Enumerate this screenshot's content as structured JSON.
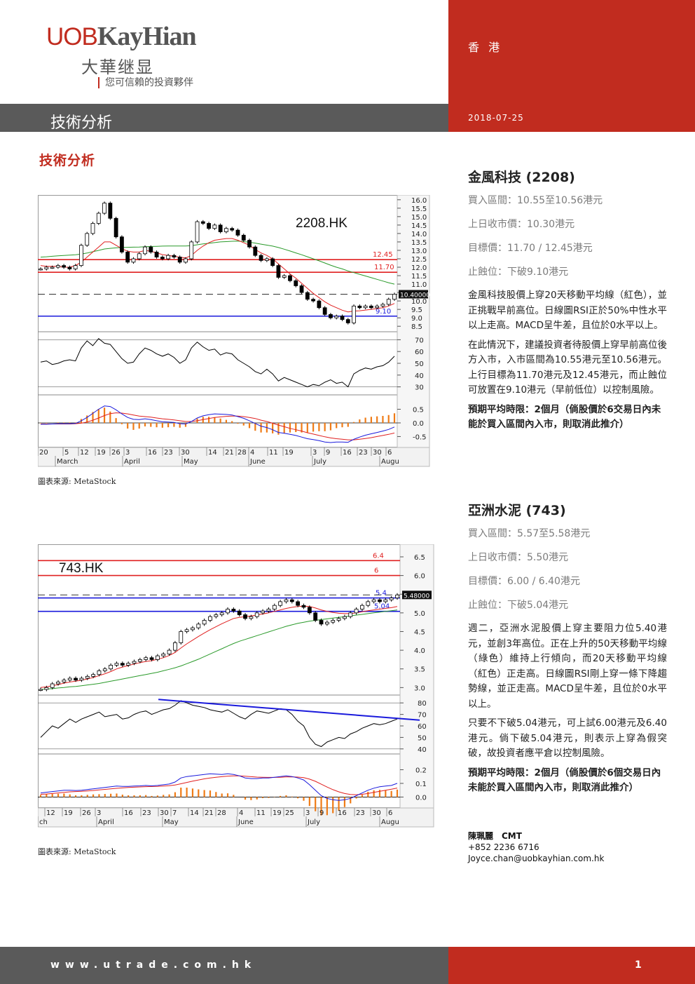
{
  "header": {
    "logo_en_a": "UOB",
    "logo_en_b": "KayHian",
    "logo_cn": "大華继显",
    "tagline": "您可信賴的投資夥伴",
    "city": "香 港",
    "section": "技術分析",
    "date": "2018-07-25"
  },
  "page_title": "技術分析",
  "stocks": [
    {
      "name": "金風科技 (2208)",
      "buy_range": "買入區間：10.55至10.56港元",
      "last_close": "上日收市價：10.30港元",
      "target": "目標價：11.70 / 12.45港元",
      "stop_loss": "止蝕位：下破9.10港元",
      "para1": "金風科技股價上穿20天移動平均線（紅色），並正挑戰早前高位。日線圖RSI正於50%中性水平以上走高。MACD呈牛差，且位於0水平以上。",
      "para2": "在此情況下，建議投資者待股價上穿早前高位後方入市，入市區間為10.55港元至10.56港元。上行目標為11.70港元及12.45港元，而止蝕位可放置在9.10港元（早前低位）以控制風險。",
      "holding": "預期平均時限：2個月（倘股價於6交易日內未能於買入區間內入市，則取消此推介）"
    },
    {
      "name": "亞洲水泥 (743)",
      "buy_range": "買入區間：5.57至5.58港元",
      "last_close": "上日收市價：5.50港元",
      "target": "目標價：6.00 / 6.40港元",
      "stop_loss": "止蝕位：下破5.04港元",
      "para1": "週二，亞洲水泥股價上穿主要阻力位5.40港元，並創3年高位。正在上升的50天移動平均線（綠色）維持上行傾向，而20天移動平均線（紅色）正走高。日線圖RSI剛上穿一條下降趨勢線，並正走高。MACD呈牛差，且位於0水平以上。",
      "para2": "只要不下破5.04港元，可上試6.00港元及6.40港元。倘下破5.04港元，則表示上穿為假突破，故投資者應平倉以控制風險。",
      "holding": "預期平均時限：2個月（倘股價於6個交易日內未能於買入區間內入市，則取消此推介）"
    }
  ],
  "analyst": {
    "name": "陳珮麗　CMT",
    "phone": "+852 2236 6716",
    "email": "Joyce.chan@uobkayhian.com.hk"
  },
  "chart_source": "圖表來源: MetaStock",
  "footer": {
    "url": "www.utrade.com.hk",
    "page": "1"
  },
  "colors": {
    "brand_red": "#c12c1f",
    "header_grey": "#5a5a5a",
    "ma20": "#e02020",
    "ma50": "#2a9a2a",
    "level_blue": "#1a1adc"
  },
  "chart_data": [
    {
      "type": "line",
      "title": "2208.HK",
      "price_axis": [
        "16.0",
        "15.5",
        "15.0",
        "14.5",
        "14.0",
        "13.5",
        "13.0",
        "12.5",
        "12.0",
        "11.5",
        "11.0",
        "10.5",
        "10.0",
        "9.5",
        "9.0",
        "8.5"
      ],
      "ylim": [
        8.3,
        16.2
      ],
      "levels": [
        {
          "label": "12.45",
          "value": 12.45,
          "color": "#e02020"
        },
        {
          "label": "11.70",
          "value": 11.7,
          "color": "#e02020"
        },
        {
          "label": "9.10",
          "value": 9.1,
          "color": "#1a1adc"
        }
      ],
      "last_price_label": "10.40000",
      "last_price": 10.4,
      "series": [
        {
          "values": [
            11.9,
            12.0,
            12.0,
            12.1,
            12.0,
            11.9,
            12.1,
            13.3,
            14.0,
            14.6,
            15.2,
            15.8,
            14.9,
            13.8,
            12.9,
            12.3,
            12.5,
            12.8,
            13.2,
            12.9,
            12.6,
            12.5,
            12.7,
            12.6,
            12.3,
            12.5,
            13.5,
            14.7,
            14.6,
            14.3,
            14.5,
            14.1,
            14.3,
            14.2,
            13.9,
            13.6,
            13.2,
            12.7,
            12.4,
            12.5,
            12.1,
            11.4,
            11.5,
            11.2,
            10.9,
            10.5,
            10.1,
            10.0,
            9.6,
            9.2,
            9.0,
            9.1,
            8.9,
            8.7,
            9.7,
            9.6,
            9.7,
            9.6,
            9.7,
            9.8,
            10.1,
            10.4
          ]
        },
        {
          "name": "",
          "values": [
            12.1,
            12.05,
            12.05,
            12.05,
            12.0,
            12.0,
            12.1,
            12.3,
            12.6,
            12.9,
            13.2,
            13.5,
            13.5,
            13.3,
            13.1,
            12.95,
            12.9,
            12.9,
            13.0,
            12.95,
            12.85,
            12.75,
            12.7,
            12.65,
            12.6,
            12.55,
            12.7,
            13.0,
            13.25,
            13.45,
            13.6,
            13.65,
            13.7,
            13.7,
            13.6,
            13.45,
            13.3,
            13.05,
            12.85,
            12.7,
            12.5,
            12.2,
            11.9,
            11.6,
            11.35,
            11.05,
            10.75,
            10.45,
            10.2,
            9.95,
            9.75,
            9.6,
            9.45,
            9.35,
            9.4,
            9.42,
            9.46,
            9.5,
            9.55,
            9.6,
            9.7,
            9.85
          ]
        },
        {
          "name": "",
          "values": [
            12.6,
            12.62,
            12.65,
            12.68,
            12.7,
            12.72,
            12.74,
            12.78,
            12.84,
            12.92,
            13.0,
            13.08,
            13.12,
            13.15,
            13.17,
            13.18,
            13.19,
            13.2,
            13.22,
            13.23,
            13.24,
            13.25,
            13.26,
            13.26,
            13.26,
            13.26,
            13.28,
            13.33,
            13.38,
            13.42,
            13.46,
            13.5,
            13.52,
            13.54,
            13.55,
            13.52,
            13.48,
            13.43,
            13.37,
            13.31,
            13.25,
            13.17,
            13.07,
            12.96,
            12.85,
            12.74,
            12.62,
            12.5,
            12.38,
            12.25,
            12.12,
            12.0,
            11.9,
            11.78,
            11.68,
            11.58,
            11.48,
            11.38,
            11.28,
            11.18,
            11.08,
            11.0
          ]
        }
      ],
      "rsi_axis": [
        "70",
        "60",
        "50",
        "40",
        "30"
      ],
      "rsi_values": [
        51,
        52,
        49,
        50,
        52,
        53,
        52,
        63,
        69,
        65,
        71,
        67,
        66,
        60,
        54,
        50,
        51,
        58,
        63,
        61,
        58,
        56,
        58,
        55,
        50,
        53,
        63,
        68,
        64,
        61,
        62,
        57,
        59,
        58,
        53,
        50,
        47,
        43,
        41,
        45,
        41,
        35,
        38,
        36,
        34,
        32,
        30,
        32,
        31,
        34,
        36,
        33,
        34,
        30,
        41,
        44,
        46,
        45,
        47,
        48,
        51,
        56
      ],
      "macd_axis": [
        "0.5",
        "0.0",
        "-0.5"
      ],
      "macd_ylim": [
        -0.9,
        0.95
      ],
      "macd_line": [
        -0.05,
        -0.05,
        -0.04,
        -0.03,
        -0.03,
        -0.03,
        -0.02,
        0.08,
        0.2,
        0.35,
        0.5,
        0.62,
        0.6,
        0.48,
        0.33,
        0.2,
        0.13,
        0.12,
        0.15,
        0.12,
        0.08,
        0.04,
        0.03,
        0.02,
        -0.03,
        -0.04,
        0.05,
        0.18,
        0.26,
        0.3,
        0.33,
        0.32,
        0.31,
        0.29,
        0.23,
        0.17,
        0.08,
        -0.02,
        -0.12,
        -0.17,
        -0.25,
        -0.35,
        -0.38,
        -0.42,
        -0.46,
        -0.52,
        -0.58,
        -0.61,
        -0.65,
        -0.7,
        -0.72,
        -0.7,
        -0.7,
        -0.71,
        -0.6,
        -0.52,
        -0.45,
        -0.4,
        -0.35,
        -0.3,
        -0.24,
        -0.15
      ],
      "macd_signal": [
        -0.04,
        -0.04,
        -0.04,
        -0.04,
        -0.04,
        -0.04,
        -0.03,
        -0.01,
        0.03,
        0.1,
        0.18,
        0.27,
        0.34,
        0.37,
        0.36,
        0.33,
        0.29,
        0.25,
        0.23,
        0.21,
        0.18,
        0.15,
        0.13,
        0.11,
        0.08,
        0.05,
        0.05,
        0.08,
        0.12,
        0.16,
        0.2,
        0.22,
        0.24,
        0.25,
        0.25,
        0.23,
        0.2,
        0.16,
        0.1,
        0.05,
        -0.01,
        -0.08,
        -0.14,
        -0.2,
        -0.25,
        -0.3,
        -0.36,
        -0.41,
        -0.46,
        -0.51,
        -0.55,
        -0.58,
        -0.6,
        -0.62,
        -0.62,
        -0.6,
        -0.57,
        -0.54,
        -0.5,
        -0.46,
        -0.42,
        -0.37
      ],
      "x_day_labels": [
        "20",
        "5",
        "12",
        "19",
        "26",
        "3",
        "16",
        "23",
        "30",
        "14",
        "21",
        "28",
        "4",
        "11",
        "19",
        "3",
        "9",
        "16",
        "23",
        "30",
        "6"
      ],
      "x_month_labels": [
        "March",
        "April",
        "May",
        "June",
        "July",
        "Augu"
      ]
    },
    {
      "type": "line",
      "title": "743.HK",
      "price_axis": [
        "6.5",
        "6.0",
        "5.5",
        "5.0",
        "4.5",
        "4.0",
        "3.5",
        "3.0"
      ],
      "ylim": [
        2.8,
        6.8
      ],
      "levels": [
        {
          "label": "6.4",
          "value": 6.4,
          "color": "#e02020"
        },
        {
          "label": "6",
          "value": 6.0,
          "color": "#e02020"
        },
        {
          "label": "5.4",
          "value": 5.4,
          "color": "#1a1adc"
        },
        {
          "label": "5.04",
          "value": 5.04,
          "color": "#1a1adc"
        }
      ],
      "last_price_label": "5.48000",
      "last_price": 5.48,
      "series": [
        {
          "values": [
            2.95,
            3.0,
            3.1,
            3.15,
            3.2,
            3.25,
            3.2,
            3.25,
            3.3,
            3.35,
            3.45,
            3.5,
            3.6,
            3.65,
            3.6,
            3.65,
            3.7,
            3.75,
            3.8,
            3.75,
            3.85,
            3.9,
            4.0,
            4.2,
            4.5,
            4.55,
            4.6,
            4.7,
            4.8,
            4.9,
            4.95,
            5.0,
            5.1,
            5.05,
            4.95,
            4.85,
            4.9,
            5.0,
            5.05,
            5.1,
            5.2,
            5.3,
            5.35,
            5.3,
            5.2,
            5.15,
            5.0,
            4.8,
            4.7,
            4.75,
            4.8,
            4.85,
            4.9,
            5.0,
            5.1,
            5.2,
            5.3,
            5.35,
            5.3,
            5.35,
            5.4,
            5.48
          ]
        },
        {
          "name": "",
          "values": [
            3.0,
            3.02,
            3.05,
            3.08,
            3.12,
            3.15,
            3.17,
            3.2,
            3.23,
            3.27,
            3.32,
            3.37,
            3.43,
            3.5,
            3.55,
            3.59,
            3.63,
            3.67,
            3.7,
            3.72,
            3.76,
            3.8,
            3.86,
            3.94,
            4.06,
            4.17,
            4.27,
            4.37,
            4.46,
            4.55,
            4.63,
            4.71,
            4.78,
            4.85,
            4.88,
            4.9,
            4.92,
            4.94,
            4.97,
            5.0,
            5.04,
            5.08,
            5.12,
            5.15,
            5.17,
            5.18,
            5.17,
            5.13,
            5.08,
            5.04,
            5.01,
            4.99,
            4.98,
            4.98,
            5.0,
            5.03,
            5.06,
            5.08,
            5.1,
            5.12,
            5.14,
            5.17
          ]
        },
        {
          "name": "",
          "values": [
            2.95,
            2.96,
            2.97,
            2.99,
            3.0,
            3.02,
            3.03,
            3.05,
            3.07,
            3.09,
            3.11,
            3.14,
            3.17,
            3.2,
            3.23,
            3.26,
            3.29,
            3.32,
            3.35,
            3.38,
            3.41,
            3.45,
            3.49,
            3.53,
            3.58,
            3.64,
            3.7,
            3.76,
            3.83,
            3.9,
            3.97,
            4.04,
            4.11,
            4.18,
            4.24,
            4.29,
            4.34,
            4.39,
            4.44,
            4.49,
            4.54,
            4.59,
            4.64,
            4.68,
            4.72,
            4.75,
            4.78,
            4.8,
            4.82,
            4.84,
            4.86,
            4.88,
            4.9,
            4.92,
            4.94,
            4.96,
            4.98,
            5.0,
            5.02,
            5.04,
            5.06,
            5.08
          ]
        }
      ],
      "rsi_axis": [
        "80",
        "70",
        "60",
        "50",
        "40"
      ],
      "rsi_values": [
        50,
        55,
        60,
        58,
        62,
        66,
        63,
        66,
        68,
        70,
        72,
        68,
        69,
        70,
        66,
        67,
        70,
        72,
        73,
        70,
        72,
        74,
        75,
        78,
        82,
        80,
        78,
        77,
        76,
        74,
        73,
        72,
        74,
        71,
        68,
        66,
        70,
        73,
        72,
        71,
        73,
        75,
        74,
        70,
        64,
        60,
        50,
        44,
        42,
        46,
        48,
        50,
        49,
        53,
        55,
        58,
        60,
        62,
        61,
        62,
        64,
        66
      ],
      "rsi_trendline": [
        [
          0.33,
          83
        ],
        [
          1.0,
          65
        ]
      ],
      "macd_axis": [
        "0.2",
        "0.1",
        "0.0"
      ],
      "macd_ylim": [
        -0.08,
        0.3
      ],
      "macd_line": [
        0.03,
        0.035,
        0.04,
        0.045,
        0.05,
        0.05,
        0.048,
        0.05,
        0.055,
        0.06,
        0.065,
        0.07,
        0.075,
        0.08,
        0.078,
        0.078,
        0.08,
        0.082,
        0.085,
        0.082,
        0.085,
        0.09,
        0.095,
        0.11,
        0.14,
        0.15,
        0.155,
        0.16,
        0.165,
        0.17,
        0.168,
        0.165,
        0.17,
        0.165,
        0.155,
        0.14,
        0.135,
        0.135,
        0.14,
        0.14,
        0.145,
        0.15,
        0.155,
        0.15,
        0.14,
        0.125,
        0.09,
        0.05,
        0.01,
        -0.01,
        -0.02,
        -0.025,
        -0.02,
        -0.01,
        0.01,
        0.03,
        0.05,
        0.065,
        0.075,
        0.08,
        0.085,
        0.1
      ],
      "macd_signal": [
        0.02,
        0.022,
        0.026,
        0.03,
        0.034,
        0.038,
        0.04,
        0.042,
        0.045,
        0.048,
        0.052,
        0.056,
        0.06,
        0.064,
        0.067,
        0.07,
        0.072,
        0.074,
        0.076,
        0.077,
        0.078,
        0.08,
        0.083,
        0.088,
        0.097,
        0.107,
        0.116,
        0.125,
        0.133,
        0.14,
        0.145,
        0.149,
        0.153,
        0.155,
        0.155,
        0.152,
        0.149,
        0.146,
        0.145,
        0.144,
        0.144,
        0.145,
        0.147,
        0.148,
        0.146,
        0.142,
        0.131,
        0.115,
        0.094,
        0.073,
        0.054,
        0.038,
        0.026,
        0.019,
        0.017,
        0.02,
        0.026,
        0.034,
        0.042,
        0.05,
        0.057,
        0.066
      ],
      "x_day_labels": [
        "12",
        "19",
        "26",
        "3",
        "16",
        "23",
        "30",
        "7",
        "14",
        "21",
        "28",
        "4",
        "11",
        "19",
        "25",
        "3",
        "9",
        "16",
        "23",
        "30",
        "6"
      ],
      "x_month_labels": [
        "ch",
        "April",
        "May",
        "June",
        "July",
        "Augu"
      ]
    }
  ]
}
